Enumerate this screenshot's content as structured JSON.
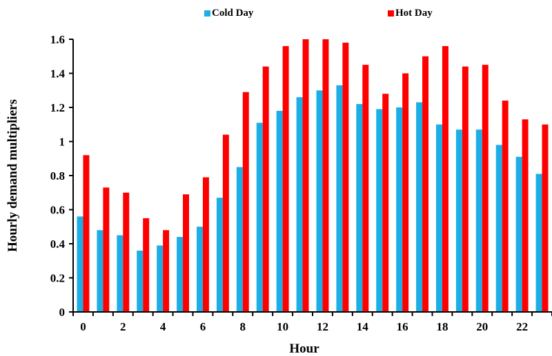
{
  "chart_data": {
    "type": "bar",
    "categories": [
      "0",
      "1",
      "2",
      "3",
      "4",
      "5",
      "6",
      "7",
      "8",
      "9",
      "10",
      "11",
      "12",
      "13",
      "14",
      "15",
      "16",
      "17",
      "18",
      "19",
      "20",
      "21",
      "22",
      "23"
    ],
    "x_tick_labels": [
      "0",
      "2",
      "4",
      "6",
      "8",
      "10",
      "12",
      "14",
      "16",
      "18",
      "20",
      "22"
    ],
    "y_tick_labels": [
      "0",
      "0.2",
      "0.4",
      "0.6",
      "0.8",
      "1",
      "1.2",
      "1.4",
      "1.6"
    ],
    "series": [
      {
        "name": "Cold Day",
        "color": "#1eaee6",
        "values": [
          0.56,
          0.48,
          0.45,
          0.36,
          0.39,
          0.44,
          0.5,
          0.67,
          0.85,
          1.11,
          1.18,
          1.26,
          1.3,
          1.33,
          1.22,
          1.19,
          1.2,
          1.23,
          1.1,
          1.07,
          1.07,
          0.98,
          0.91,
          0.81
        ]
      },
      {
        "name": "Hot Day",
        "color": "#ff0000",
        "values": [
          0.92,
          0.73,
          0.7,
          0.55,
          0.48,
          0.69,
          0.79,
          1.04,
          1.29,
          1.44,
          1.56,
          1.6,
          1.6,
          1.58,
          1.45,
          1.28,
          1.4,
          1.5,
          1.56,
          1.44,
          1.45,
          1.24,
          1.13,
          1.1
        ]
      }
    ],
    "xlabel": "Hour",
    "ylabel": "Hourly demand multipliers",
    "ylim": [
      0,
      1.6
    ],
    "grid": false,
    "legend_position": "top"
  }
}
